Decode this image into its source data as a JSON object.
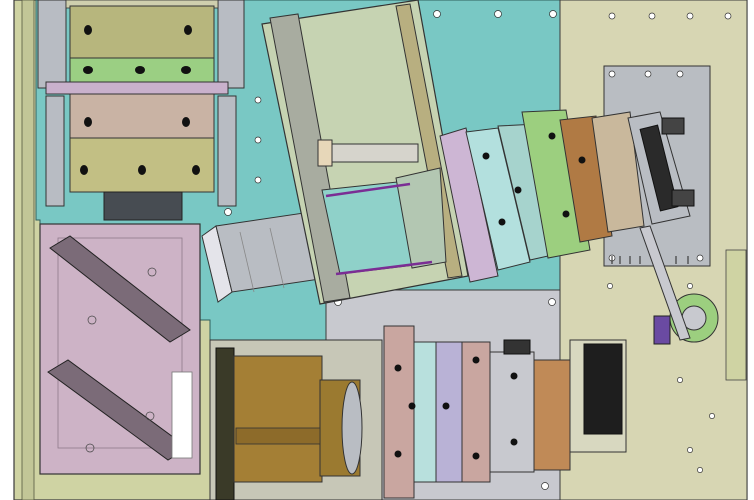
{
  "scene": {
    "kind": "cad-assembly-render",
    "colors": {
      "background": "#ffffff",
      "base_plate": "#cfd3a3",
      "cyan_plate": "#79c8c4",
      "gray_plate": "#c8c9cf",
      "mirror_box": "#cdb3c6",
      "olive_tube": "#a7ad7e",
      "pink_ring": "#c9a6a0",
      "lavender_ring": "#b9b2d6",
      "light_cyan_ring": "#b8e0dd",
      "green_ring": "#9ccf7f",
      "bronze_ring": "#c08a57",
      "gold_body": "#a47f35",
      "steel_tube": "#b9bdc3",
      "black_part": "#1e1e1e",
      "outline": "#3a3a3a"
    },
    "parts": [
      {
        "name": "base-plate"
      },
      {
        "name": "cyan-mounting-plate"
      },
      {
        "name": "gray-mounting-plate"
      },
      {
        "name": "mirror-housing"
      },
      {
        "name": "vertical-lens-tube"
      },
      {
        "name": "tilted-prism-housing"
      },
      {
        "name": "diagonal-lens-assembly"
      },
      {
        "name": "right-lens-stack"
      },
      {
        "name": "gold-camera-body"
      },
      {
        "name": "rotary-stage"
      },
      {
        "name": "right-side-plate"
      }
    ]
  }
}
